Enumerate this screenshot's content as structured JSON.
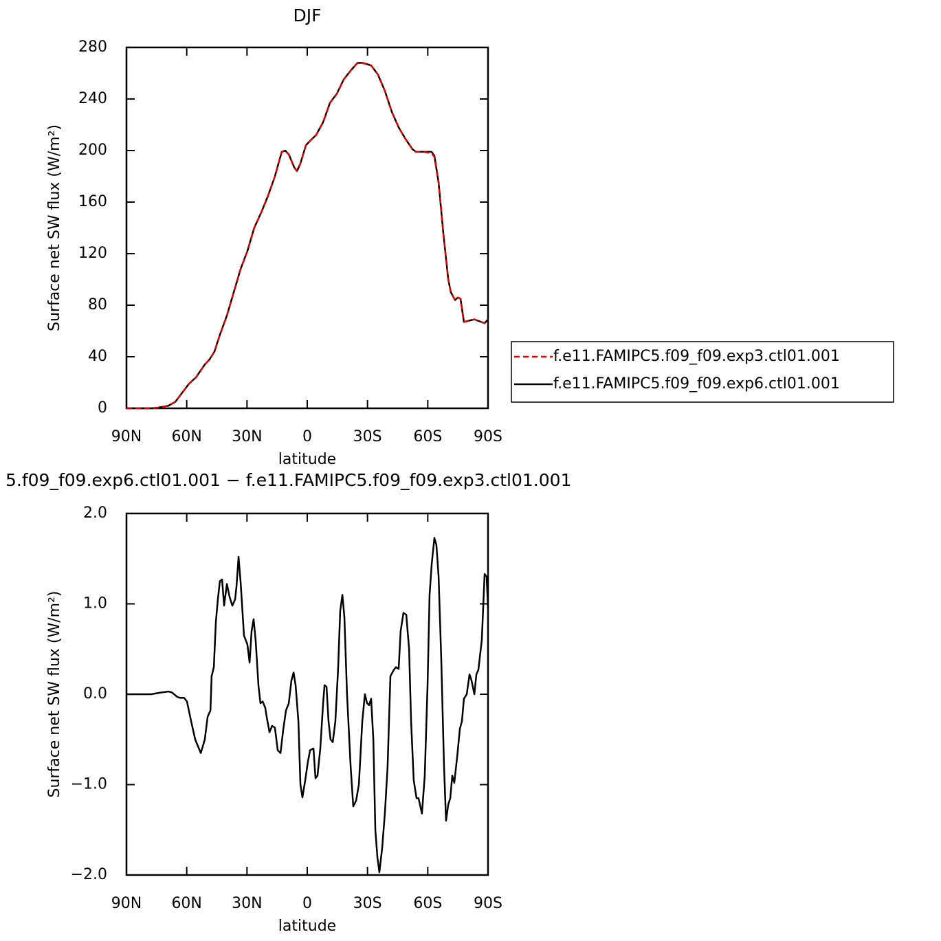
{
  "chart_data": [
    {
      "type": "line",
      "title": "DJF",
      "x_label": "latitude",
      "y_label": "Surface net SW flux (W/m²)",
      "xlim": [
        90,
        -90
      ],
      "xticks": [
        {
          "value": 90,
          "label": "90N"
        },
        {
          "value": 60,
          "label": "60N"
        },
        {
          "value": 30,
          "label": "30N"
        },
        0,
        {
          "value": -30,
          "label": "30S"
        },
        {
          "value": -60,
          "label": "60S"
        },
        {
          "value": -90,
          "label": "90S"
        }
      ],
      "ylim": [
        0,
        280
      ],
      "yticks": [
        0,
        40,
        80,
        120,
        160,
        200,
        240,
        280
      ],
      "legend": "right",
      "x": [
        90,
        77.7,
        74.3,
        69.1,
        65.7,
        62.3,
        58.9,
        55.4,
        51.0,
        48.6,
        46.2,
        43.5,
        40.0,
        36.6,
        33.2,
        29.8,
        26.4,
        22.9,
        19.5,
        16.1,
        12.7,
        11.0,
        9.2,
        6.5,
        5.1,
        3.4,
        0.7,
        -1.7,
        -4.4,
        -7.9,
        -11.3,
        -14.7,
        -18.1,
        -21.6,
        -25.0,
        -27.7,
        -31.8,
        -35.2,
        -38.7,
        -42.1,
        -45.5,
        -48.9,
        -52.4,
        -54.1,
        -57.5,
        -61.9,
        -63.3,
        -65.4,
        -67.8,
        -70.2,
        -71.5,
        -73.6,
        -75.0,
        -76.3,
        -78.0,
        -83.2,
        -86.6,
        -88.3,
        -90
      ],
      "series": [
        {
          "name": "f.e11.FAMIPC5.f09_f09.exp3.ctl01.001",
          "color": "#e00000",
          "line_style": "dashed",
          "values": [
            0,
            0,
            0.5,
            2,
            5,
            12,
            19,
            24,
            34,
            38,
            44,
            57,
            72,
            90,
            108,
            122,
            140,
            152,
            165,
            180,
            199,
            200,
            197,
            187,
            184,
            190,
            204,
            208,
            212,
            222,
            237,
            244,
            255,
            262,
            268,
            268,
            266,
            259,
            246,
            230,
            218,
            209,
            201,
            199,
            199,
            198,
            195,
            175,
            135,
            100,
            90,
            84,
            86,
            85,
            67,
            69,
            67,
            66,
            69
          ]
        },
        {
          "name": "f.e11.FAMIPC5.f09_f09.exp6.ctl01.001",
          "color": "#000000",
          "line_style": "solid",
          "values": [
            0,
            0,
            0.5,
            2,
            5,
            12,
            19,
            24,
            34,
            38,
            44,
            57,
            72,
            90,
            108,
            122,
            140,
            152,
            165,
            180,
            199,
            200,
            197,
            187,
            184,
            190,
            204,
            208,
            212,
            222,
            237,
            244,
            255,
            262,
            268,
            268,
            266,
            259,
            246,
            230,
            218,
            209,
            201,
            199,
            199,
            199,
            196,
            175,
            135,
            100,
            90,
            84,
            86,
            85,
            67,
            69,
            67,
            66,
            69
          ]
        }
      ]
    },
    {
      "type": "line",
      "title": "5.f09_f09.exp6.ctl01.001 − f.e11.FAMIPC5.f09_f09.exp3.ctl01.001",
      "x_label": "latitude",
      "y_label": "Surface net SW flux (W/m²)",
      "xlim": [
        90,
        -90
      ],
      "xticks": [
        {
          "value": 90,
          "label": "90N"
        },
        {
          "value": 60,
          "label": "60N"
        },
        {
          "value": 30,
          "label": "30N"
        },
        0,
        {
          "value": -30,
          "label": "30S"
        },
        {
          "value": -60,
          "label": "60S"
        },
        {
          "value": -90,
          "label": "90S"
        }
      ],
      "ylim": [
        -2,
        2
      ],
      "yticks": [
        {
          "value": -2,
          "label": "−2.0"
        },
        {
          "value": -1,
          "label": "−1.0"
        },
        {
          "value": 0,
          "label": "0.0"
        },
        {
          "value": 1,
          "label": "1.0"
        },
        {
          "value": 2,
          "label": "2.0"
        }
      ],
      "x": [
        90,
        77.7,
        72.5,
        69.1,
        67.4,
        64.7,
        63.3,
        61.3,
        59.9,
        57.8,
        55.8,
        53.0,
        51.0,
        49.6,
        48.2,
        47.6,
        46.5,
        45.5,
        44.5,
        43.5,
        42.4,
        41.4,
        40.0,
        38.7,
        37.3,
        35.9,
        35.2,
        34.2,
        33.2,
        31.5,
        29.8,
        28.7,
        27.7,
        26.7,
        25.7,
        24.3,
        23.3,
        22.2,
        20.9,
        20.2,
        18.8,
        17.5,
        16.1,
        14.7,
        13.3,
        12.0,
        10.6,
        9.2,
        7.9,
        6.8,
        5.8,
        4.4,
        3.4,
        2.4,
        1.0,
        -0.3,
        -1.4,
        -3.1,
        -4.1,
        -5.1,
        -6.5,
        -7.9,
        -8.6,
        -9.6,
        -10.6,
        -11.6,
        -12.7,
        -14.0,
        -15.4,
        -16.4,
        -17.5,
        -18.5,
        -19.8,
        -21.6,
        -22.9,
        -24.3,
        -25.7,
        -27.4,
        -28.7,
        -29.8,
        -30.8,
        -31.8,
        -32.9,
        -33.9,
        -34.9,
        -35.9,
        -37.3,
        -38.7,
        -40.0,
        -41.4,
        -43.1,
        -44.2,
        -45.5,
        -46.5,
        -47.9,
        -49.3,
        -50.7,
        -51.7,
        -53.0,
        -54.4,
        -55.4,
        -57.1,
        -58.5,
        -59.9,
        -60.9,
        -62.0,
        -63.3,
        -64.3,
        -65.4,
        -66.7,
        -68.1,
        -69.1,
        -70.2,
        -71.2,
        -72.2,
        -73.2,
        -74.6,
        -76.0,
        -77.0,
        -78.0,
        -79.4,
        -80.8,
        -81.8,
        -83.2,
        -84.2,
        -85.2,
        -86.9,
        -88.3,
        -89.3,
        -90
      ],
      "series": [
        {
          "name": null,
          "color": "#000000",
          "line_style": "solid",
          "values": [
            0,
            0,
            0.02,
            0.03,
            0.02,
            -0.03,
            -0.04,
            -0.04,
            -0.08,
            -0.3,
            -0.5,
            -0.65,
            -0.5,
            -0.25,
            -0.18,
            0.2,
            0.3,
            0.8,
            1.05,
            1.25,
            1.27,
            0.98,
            1.22,
            1.08,
            0.98,
            1.05,
            1.2,
            1.52,
            1.25,
            0.65,
            0.55,
            0.35,
            0.7,
            0.83,
            0.6,
            0.1,
            -0.1,
            -0.08,
            -0.15,
            -0.25,
            -0.42,
            -0.35,
            -0.37,
            -0.62,
            -0.65,
            -0.4,
            -0.18,
            -0.1,
            0.15,
            0.24,
            0.1,
            -0.3,
            -1.0,
            -1.14,
            -0.95,
            -0.75,
            -0.62,
            -0.6,
            -0.93,
            -0.9,
            -0.6,
            -0.1,
            0.1,
            0.08,
            -0.3,
            -0.5,
            -0.53,
            -0.3,
            0.3,
            0.92,
            1.1,
            0.85,
            0,
            -0.8,
            -1.24,
            -1.18,
            -1.0,
            -0.3,
            0,
            -0.1,
            -0.12,
            -0.05,
            -0.5,
            -1.5,
            -1.8,
            -1.97,
            -1.7,
            -1.3,
            -0.8,
            0.2,
            0.27,
            0.3,
            0.28,
            0.7,
            0.9,
            0.88,
            0.5,
            -0.3,
            -0.95,
            -1.15,
            -1.15,
            -1.32,
            -0.9,
            0.1,
            1.1,
            1.45,
            1.73,
            1.65,
            1.3,
            0.4,
            -0.8,
            -1.4,
            -1.22,
            -1.15,
            -0.9,
            -0.98,
            -0.7,
            -0.38,
            -0.3,
            -0.05,
            0,
            0.22,
            0.15,
            0,
            0.22,
            0.27,
            0.6,
            1.33,
            1.3,
            0.95
          ]
        }
      ]
    }
  ]
}
